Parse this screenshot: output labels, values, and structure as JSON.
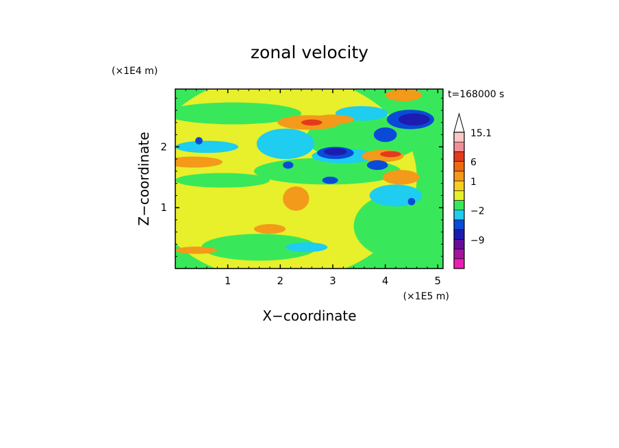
{
  "chart_data": {
    "type": "heatmap",
    "title": "zonal velocity",
    "time_label": "t=168000 s",
    "xlabel": "X−coordinate",
    "ylabel": "Z−coordinate",
    "x_scale_label": "(×1E5 m)",
    "y_scale_label": "(×1E4 m)",
    "xlim": [
      0,
      5.1
    ],
    "ylim": [
      0,
      2.95
    ],
    "x_ticks": [
      "1",
      "2",
      "3",
      "4",
      "5"
    ],
    "y_ticks": [
      "1",
      "2"
    ],
    "colorbar": {
      "levels": [
        {
          "color": "#ec1fb4",
          "label": ""
        },
        {
          "color": "#a4149e",
          "label": ""
        },
        {
          "color": "#6a0a9c",
          "label": "−9"
        },
        {
          "color": "#1c1cb0",
          "label": ""
        },
        {
          "color": "#0a4ad8",
          "label": ""
        },
        {
          "color": "#1ecdf0",
          "label": "−2"
        },
        {
          "color": "#39e85a",
          "label": ""
        },
        {
          "color": "#e8ef2b",
          "label": ""
        },
        {
          "color": "#f8ce22",
          "label": "1"
        },
        {
          "color": "#f39a1a",
          "label": ""
        },
        {
          "color": "#ef6a10",
          "label": "6"
        },
        {
          "color": "#e43a1c",
          "label": ""
        },
        {
          "color": "#f28f96",
          "label": ""
        },
        {
          "color": "#f7c9c6",
          "label": "15.1"
        }
      ],
      "extend_top_color": "#ffffff"
    },
    "field_blobs": [
      {
        "x": 2.0,
        "z": 1.5,
        "rx": 2.6,
        "rz": 1.7,
        "level": "yellow"
      },
      {
        "x": 4.3,
        "z": 0.7,
        "rx": 0.9,
        "rz": 0.55,
        "level": "green"
      },
      {
        "x": 1.6,
        "z": 0.35,
        "rx": 1.1,
        "rz": 0.22,
        "level": "green"
      },
      {
        "x": 0.9,
        "z": 1.45,
        "rx": 0.9,
        "rz": 0.12,
        "level": "green"
      },
      {
        "x": 1.1,
        "z": 2.55,
        "rx": 1.3,
        "rz": 0.18,
        "level": "green"
      },
      {
        "x": 2.9,
        "z": 1.6,
        "rx": 1.4,
        "rz": 0.22,
        "level": "green"
      },
      {
        "x": 3.6,
        "z": 2.15,
        "rx": 1.1,
        "rz": 0.4,
        "level": "green"
      },
      {
        "x": 0.6,
        "z": 2.0,
        "rx": 0.6,
        "rz": 0.1,
        "level": "cyan"
      },
      {
        "x": 2.1,
        "z": 2.05,
        "rx": 0.55,
        "rz": 0.25,
        "level": "cyan"
      },
      {
        "x": 3.55,
        "z": 2.55,
        "rx": 0.5,
        "rz": 0.12,
        "level": "cyan"
      },
      {
        "x": 4.2,
        "z": 1.2,
        "rx": 0.5,
        "rz": 0.18,
        "level": "cyan"
      },
      {
        "x": 3.2,
        "z": 1.85,
        "rx": 0.6,
        "rz": 0.12,
        "level": "cyan"
      },
      {
        "x": 2.5,
        "z": 0.35,
        "rx": 0.4,
        "rz": 0.08,
        "level": "cyan"
      },
      {
        "x": 0.35,
        "z": 1.75,
        "rx": 0.55,
        "rz": 0.09,
        "level": "orange"
      },
      {
        "x": 2.55,
        "z": 2.4,
        "rx": 0.6,
        "rz": 0.12,
        "level": "orange"
      },
      {
        "x": 3.0,
        "z": 2.45,
        "rx": 0.4,
        "rz": 0.08,
        "level": "orange"
      },
      {
        "x": 2.3,
        "z": 1.15,
        "rx": 0.25,
        "rz": 0.2,
        "level": "orange"
      },
      {
        "x": 3.95,
        "z": 1.85,
        "rx": 0.4,
        "rz": 0.1,
        "level": "orange"
      },
      {
        "x": 4.3,
        "z": 1.5,
        "rx": 0.35,
        "rz": 0.12,
        "level": "orange"
      },
      {
        "x": 4.35,
        "z": 2.85,
        "rx": 0.35,
        "rz": 0.1,
        "level": "orange"
      },
      {
        "x": 1.8,
        "z": 0.65,
        "rx": 0.3,
        "rz": 0.08,
        "level": "orange"
      },
      {
        "x": 0.4,
        "z": 0.3,
        "rx": 0.4,
        "rz": 0.06,
        "level": "orange"
      },
      {
        "x": 2.6,
        "z": 2.4,
        "rx": 0.2,
        "rz": 0.05,
        "level": "red"
      },
      {
        "x": 4.1,
        "z": 1.88,
        "rx": 0.2,
        "rz": 0.05,
        "level": "red"
      },
      {
        "x": 4.48,
        "z": 2.45,
        "rx": 0.45,
        "rz": 0.16,
        "level": "blue"
      },
      {
        "x": 3.05,
        "z": 1.9,
        "rx": 0.35,
        "rz": 0.1,
        "level": "blue"
      },
      {
        "x": 4.0,
        "z": 2.2,
        "rx": 0.22,
        "rz": 0.12,
        "level": "blue"
      },
      {
        "x": 3.85,
        "z": 1.7,
        "rx": 0.2,
        "rz": 0.08,
        "level": "blue"
      },
      {
        "x": 2.15,
        "z": 1.7,
        "rx": 0.1,
        "rz": 0.06,
        "level": "blue"
      },
      {
        "x": 2.95,
        "z": 1.45,
        "rx": 0.15,
        "rz": 0.06,
        "level": "blue"
      },
      {
        "x": 0.45,
        "z": 2.1,
        "rx": 0.07,
        "rz": 0.06,
        "level": "blue"
      },
      {
        "x": 4.5,
        "z": 1.1,
        "rx": 0.07,
        "rz": 0.06,
        "level": "blue"
      },
      {
        "x": 4.55,
        "z": 2.45,
        "rx": 0.3,
        "rz": 0.1,
        "level": "navy"
      },
      {
        "x": 3.05,
        "z": 1.92,
        "rx": 0.22,
        "rz": 0.06,
        "level": "navy"
      }
    ]
  }
}
